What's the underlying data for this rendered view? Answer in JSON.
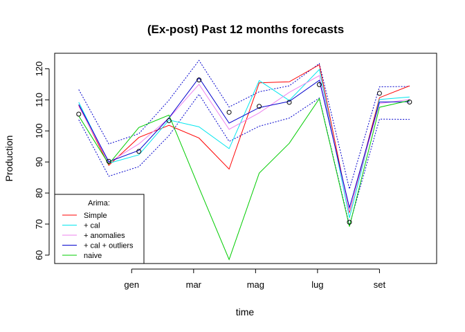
{
  "chart_data": {
    "type": "line",
    "title": "(Ex-post) Past 12 months forecasts",
    "xlabel": "time",
    "ylabel": "Production",
    "xlim": [
      0.2,
      12.9
    ],
    "ylim": [
      57.3,
      125
    ],
    "x": [
      1,
      2,
      3,
      4,
      5,
      6,
      7,
      8,
      9,
      10,
      11,
      12
    ],
    "x_ticks": [
      {
        "x": 2.76,
        "label": "gen"
      },
      {
        "x": 4.82,
        "label": "mar"
      },
      {
        "x": 6.88,
        "label": "mag"
      },
      {
        "x": 8.94,
        "label": "lug"
      },
      {
        "x": 11.0,
        "label": "set"
      }
    ],
    "y_ticks": [
      60,
      70,
      80,
      90,
      100,
      110,
      120
    ],
    "observed": [
      105.4,
      90.2,
      93.4,
      103.3,
      116.4,
      106.0,
      107.9,
      109.2,
      114.9,
      70.6,
      112.1,
      109.3
    ],
    "series": [
      {
        "name": "Simple",
        "color": "#ff0000",
        "values": [
          108.3,
          88.9,
          97.9,
          101.8,
          97.7,
          87.7,
          115.5,
          115.8,
          121.3,
          73.7,
          110.7,
          114.5
        ]
      },
      {
        "name": "+ cal",
        "color": "#00e5ee",
        "values": [
          109.2,
          89.6,
          92.3,
          103.5,
          101.3,
          94.3,
          116.2,
          109.8,
          119.8,
          72.0,
          110.1,
          110.9
        ]
      },
      {
        "name": "+ anomalies",
        "color": "#ee82ee",
        "values": [
          107.9,
          89.8,
          95.8,
          104.1,
          115.0,
          100.5,
          105.8,
          112.4,
          117.8,
          74.1,
          108.8,
          110.1
        ]
      },
      {
        "name": "+ cal + outliers",
        "color": "#0000cd",
        "values": [
          108.5,
          90.1,
          93.7,
          104.2,
          117.1,
          102.5,
          107.5,
          109.5,
          116.3,
          75.3,
          109.3,
          109.4
        ]
      },
      {
        "name": "naive",
        "color": "#00cc00",
        "values": [
          104.8,
          89.3,
          101.1,
          105.1,
          81.7,
          58.6,
          86.4,
          96.0,
          110.4,
          69.2,
          107.6,
          109.8
        ]
      }
    ],
    "bands": {
      "color": "#0000cd",
      "upper": [
        113.3,
        95.8,
        99.1,
        109.9,
        122.7,
        107.7,
        112.6,
        114.5,
        121.7,
        81.3,
        114.2,
        114.3
      ],
      "lower": [
        103.6,
        85.4,
        88.5,
        98.5,
        111.8,
        96.6,
        101.5,
        104.1,
        110.6,
        69.6,
        103.8,
        103.7
      ]
    },
    "legend": {
      "title": "Arima:",
      "position": "bottom-left"
    },
    "grid": false
  }
}
